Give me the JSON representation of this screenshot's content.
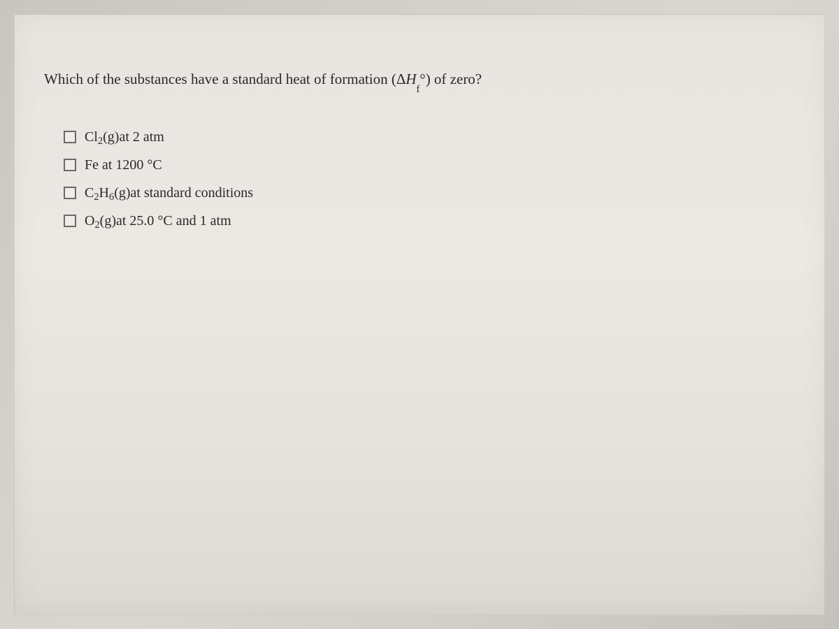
{
  "question": {
    "prefix": "Which of the substances have a standard heat of formation (",
    "delta": "Δ",
    "deltaH": "H",
    "subscript_f": "f",
    "degree": "°",
    "suffix": ") of zero?"
  },
  "options": [
    {
      "id": "opt1",
      "parts": {
        "chem1": "Cl",
        "sub1": "2",
        "paren1": "(g)",
        "rest": " at 2 atm"
      },
      "checked": false
    },
    {
      "id": "opt2",
      "parts": {
        "rest": "Fe at 1200 °C"
      },
      "checked": false
    },
    {
      "id": "opt3",
      "parts": {
        "chem1": "C",
        "sub1": "2",
        "chem2": "H",
        "sub2": "6",
        "paren1": "(g)",
        "rest": " at standard conditions"
      },
      "checked": false
    },
    {
      "id": "opt4",
      "parts": {
        "chem1": "O",
        "sub1": "2",
        "paren1": "(g)",
        "rest": " at 25.0 °C and 1 atm"
      },
      "checked": false
    }
  ],
  "colors": {
    "text": "#2a2a2a",
    "card_bg": "#e8e4df",
    "body_bg": "#d0ccc7",
    "checkbox_border": "#6a6a6a"
  }
}
